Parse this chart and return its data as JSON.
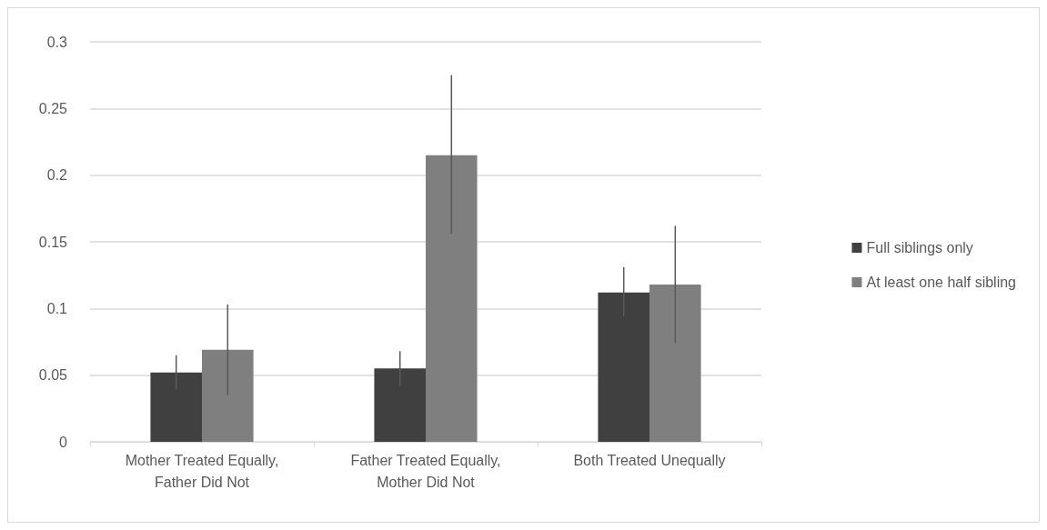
{
  "chart_data": {
    "type": "bar",
    "categories": [
      "Mother Treated Equally, Father Did Not",
      "Father Treated Equally, Mother Did Not",
      "Both Treated Unequally"
    ],
    "series": [
      {
        "name": "Full siblings only",
        "color": "#404040",
        "values": [
          0.052,
          0.055,
          0.112
        ],
        "errors": [
          [
            0.039,
            0.065
          ],
          [
            0.042,
            0.068
          ],
          [
            0.094,
            0.131
          ]
        ]
      },
      {
        "name": "At least one half sibling",
        "color": "#7f7f7f",
        "values": [
          0.069,
          0.215,
          0.118
        ],
        "errors": [
          [
            0.035,
            0.103
          ],
          [
            0.156,
            0.275
          ],
          [
            0.074,
            0.162
          ]
        ]
      }
    ],
    "ylim": [
      0,
      0.3
    ],
    "yticks": [
      0,
      0.05,
      0.1,
      0.15,
      0.2,
      0.25,
      0.3
    ],
    "grid": "y",
    "legend": "right"
  }
}
